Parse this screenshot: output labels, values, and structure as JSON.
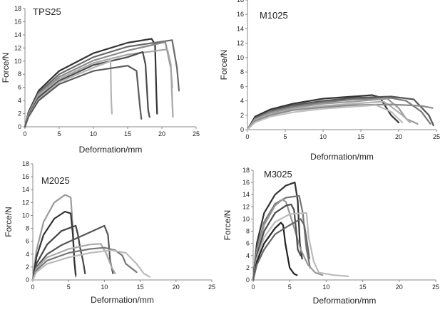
{
  "chart_data": [
    {
      "type": "line",
      "title": "TPS25",
      "xlabel": "Deformation/mm",
      "ylabel": "Force/N",
      "xlim": [
        0,
        25
      ],
      "ylim": [
        0,
        18
      ],
      "xticks": [
        0,
        5,
        10,
        15,
        20,
        25
      ],
      "yticks": [
        0,
        2,
        4,
        6,
        8,
        10,
        12,
        14,
        16,
        18
      ],
      "series": [
        {
          "color": "#333333",
          "x": [
            0,
            0.5,
            2,
            5,
            10,
            15,
            18.5,
            19,
            19.2,
            19.3
          ],
          "y": [
            0,
            2.2,
            5.5,
            8.5,
            11.2,
            12.8,
            13.4,
            12.5,
            5,
            2
          ]
        },
        {
          "color": "#6a6a6a",
          "x": [
            0,
            0.5,
            2,
            5,
            10,
            15,
            21.5,
            22.2,
            22.5
          ],
          "y": [
            0,
            2,
            5.2,
            8,
            10.6,
            12.2,
            13.2,
            9,
            5.5
          ]
        },
        {
          "color": "#8a8a8a",
          "x": [
            0,
            0.5,
            2,
            5,
            10,
            15,
            20.5,
            21.3,
            21.5
          ],
          "y": [
            0,
            1.9,
            5,
            7.6,
            10.1,
            11.6,
            12.9,
            9,
            6
          ]
        },
        {
          "color": "#a8a8a8",
          "x": [
            0,
            0.5,
            2,
            5,
            10,
            15,
            20.8,
            21.3,
            21.6
          ],
          "y": [
            0,
            1.8,
            4.8,
            7.3,
            9.7,
            11,
            11.8,
            9.5,
            1.5
          ]
        },
        {
          "color": "#4a4a4a",
          "x": [
            0,
            0.5,
            2,
            5,
            10,
            15,
            17.2,
            17.6,
            18,
            18.2
          ],
          "y": [
            0,
            1.7,
            4.5,
            7,
            9.4,
            10.6,
            11.4,
            9.5,
            2.5,
            1.5
          ]
        },
        {
          "color": "#b5b5b5",
          "x": [
            0,
            0.5,
            2,
            5,
            10,
            12.5,
            12.6,
            12.7
          ],
          "y": [
            0,
            1.6,
            4.2,
            6.8,
            9,
            10,
            4,
            2
          ]
        },
        {
          "color": "#5a5a5a",
          "x": [
            0,
            0.5,
            2,
            5,
            10,
            15,
            16.3,
            16.8,
            17
          ],
          "y": [
            0,
            1.5,
            4,
            6.5,
            8.5,
            9.3,
            8.5,
            3,
            1.2
          ]
        }
      ]
    },
    {
      "type": "line",
      "title": "M1025",
      "xlabel": "Deformation/mm",
      "ylabel": "Force/N",
      "xlim": [
        0,
        25
      ],
      "ylim": [
        0,
        18
      ],
      "xticks": [
        0,
        5,
        10,
        15,
        20,
        25
      ],
      "yticks": [
        0,
        2,
        4,
        6,
        8,
        10,
        12,
        14,
        16,
        18
      ],
      "series": [
        {
          "color": "#333333",
          "x": [
            0,
            1,
            3,
            6,
            10,
            14,
            16.5,
            17.5,
            19,
            20
          ],
          "y": [
            0,
            1.8,
            2.8,
            3.6,
            4.3,
            4.6,
            4.8,
            4.5,
            2,
            1
          ]
        },
        {
          "color": "#555555",
          "x": [
            0,
            1,
            3,
            6,
            10,
            14,
            19,
            22,
            24,
            24.6
          ],
          "y": [
            0,
            1.6,
            2.6,
            3.4,
            4,
            4.4,
            4.6,
            4.2,
            2,
            0.6
          ]
        },
        {
          "color": "#7a7a7a",
          "x": [
            0,
            1,
            3,
            6,
            10,
            14,
            19,
            21,
            23,
            24.2
          ],
          "y": [
            0,
            1.5,
            2.5,
            3.2,
            3.8,
            4.2,
            4.4,
            4,
            2.5,
            0.8
          ]
        },
        {
          "color": "#9a9a9a",
          "x": [
            0,
            1,
            3,
            6,
            10,
            14,
            18.5,
            20,
            21,
            22.5
          ],
          "y": [
            0,
            1.4,
            2.3,
            3,
            3.6,
            3.9,
            4.3,
            3,
            1.5,
            0.8
          ]
        },
        {
          "color": "#b0b0b0",
          "x": [
            0,
            1,
            3,
            6,
            10,
            14,
            18,
            19,
            20.5,
            21.5
          ],
          "y": [
            0,
            1.3,
            2.1,
            2.8,
            3.3,
            3.6,
            3.9,
            3.2,
            2,
            1
          ]
        },
        {
          "color": "#8c8c8c",
          "x": [
            0,
            1,
            3,
            6,
            10,
            14,
            19,
            23,
            24.5
          ],
          "y": [
            0,
            1.2,
            2,
            2.7,
            3.1,
            3.4,
            3.5,
            3.3,
            3
          ]
        },
        {
          "color": "#c0c0c0",
          "x": [
            0,
            1,
            3,
            6,
            10,
            14,
            17,
            19,
            20.5
          ],
          "y": [
            0,
            1,
            1.8,
            2.4,
            2.9,
            3.2,
            3.4,
            2.5,
            1
          ]
        }
      ]
    },
    {
      "type": "line",
      "title": "M2025",
      "xlabel": "Deformation/mm",
      "ylabel": "Force/N",
      "xlim": [
        0,
        25
      ],
      "ylim": [
        0,
        18
      ],
      "xticks": [
        0,
        5,
        10,
        15,
        20,
        25
      ],
      "yticks": [
        0,
        2,
        4,
        6,
        8,
        10,
        12,
        14,
        16,
        18
      ],
      "series": [
        {
          "color": "#9a9a9a",
          "x": [
            0,
            0.5,
            1.5,
            3,
            4.5,
            5.3,
            5.6,
            5.8,
            6
          ],
          "y": [
            0,
            4.5,
            9,
            12,
            13.2,
            12.8,
            8,
            3,
            0.5
          ]
        },
        {
          "color": "#333333",
          "x": [
            0,
            0.5,
            1.5,
            3,
            4.5,
            5.3,
            5.6,
            5.8,
            6
          ],
          "y": [
            0,
            3.5,
            7,
            9.5,
            10.6,
            10.3,
            7,
            3,
            0.8
          ]
        },
        {
          "color": "#444444",
          "x": [
            0,
            0.5,
            2,
            4,
            6,
            6.3,
            6.6,
            7,
            7.3
          ],
          "y": [
            0,
            2.5,
            5.5,
            7.6,
            8.4,
            7,
            5,
            3,
            1
          ]
        },
        {
          "color": "#555555",
          "x": [
            0,
            0.5,
            2,
            4,
            6,
            8,
            10,
            10.5,
            10.8,
            11.2
          ],
          "y": [
            0,
            2,
            4,
            5.4,
            6.4,
            7.4,
            8.4,
            7,
            3,
            1
          ]
        },
        {
          "color": "#aaaaaa",
          "x": [
            0,
            0.5,
            2,
            5,
            8,
            9.5,
            10.3,
            11,
            11.5
          ],
          "y": [
            0,
            1.8,
            3.5,
            4.8,
            5.5,
            5.6,
            4,
            2,
            1
          ]
        },
        {
          "color": "#777777",
          "x": [
            0,
            0.5,
            2,
            5,
            8,
            10,
            11.5,
            12.5,
            13,
            14.5
          ],
          "y": [
            0,
            1.5,
            3,
            4.2,
            4.8,
            5,
            4.6,
            3.8,
            2.5,
            1.2
          ]
        },
        {
          "color": "#bbbbbb",
          "x": [
            0,
            0.5,
            2,
            5,
            8,
            11,
            13,
            14.5,
            15.5,
            16.3
          ],
          "y": [
            0,
            1.2,
            2.5,
            3.5,
            4.2,
            4.6,
            4.2,
            2.5,
            1,
            0.5
          ]
        }
      ]
    },
    {
      "type": "line",
      "title": "M3025",
      "xlabel": "Deformation/mm",
      "ylabel": "Force/N",
      "xlim": [
        0,
        25
      ],
      "ylim": [
        0,
        18
      ],
      "xticks": [
        0,
        5,
        10,
        15,
        20,
        25
      ],
      "yticks": [
        0,
        2,
        4,
        6,
        8,
        10,
        12,
        14,
        16,
        18
      ],
      "series": [
        {
          "color": "#333333",
          "x": [
            0,
            0.5,
            1.5,
            3,
            4.5,
            5.7,
            6.1,
            6.4,
            6.7
          ],
          "y": [
            0,
            6,
            11,
            14,
            15.5,
            16,
            13,
            6,
            3.5
          ]
        },
        {
          "color": "#777777",
          "x": [
            0,
            0.5,
            1.5,
            3,
            4.5,
            6.3,
            6.8,
            7.3,
            7.8
          ],
          "y": [
            0,
            5,
            9.5,
            12.5,
            13.5,
            13.8,
            11,
            5,
            2
          ]
        },
        {
          "color": "#999999",
          "x": [
            0,
            0.5,
            1.5,
            3,
            4,
            4.5,
            5.5,
            6.5,
            7.5,
            8.5,
            9.5
          ],
          "y": [
            0,
            4.5,
            9,
            12.2,
            13.2,
            12.8,
            9,
            5,
            2.5,
            1.2,
            0.8
          ]
        },
        {
          "color": "#4d4d4d",
          "x": [
            0,
            0.5,
            1.5,
            3,
            4.5,
            5.2,
            5.6,
            5.9,
            6.1,
            6.5
          ],
          "y": [
            0,
            4,
            8,
            11,
            12.2,
            12.4,
            11.5,
            8,
            5,
            4
          ]
        },
        {
          "color": "#bbbbbb",
          "x": [
            0,
            0.5,
            1.5,
            3,
            5,
            7.3,
            7.6,
            8.3,
            9,
            11,
            13
          ],
          "y": [
            0,
            3.5,
            7,
            9.5,
            10.8,
            11,
            7,
            3,
            1.2,
            0.8,
            0.6
          ]
        },
        {
          "color": "#222222",
          "x": [
            0,
            0.5,
            1.5,
            3,
            3.8,
            4.1,
            4.4,
            5,
            5.6,
            6
          ],
          "y": [
            0,
            3,
            6,
            8.5,
            9.4,
            9,
            6,
            2,
            1,
            0.8
          ]
        },
        {
          "color": "#666666",
          "x": [
            0,
            0.5,
            1.5,
            3,
            5,
            6.5,
            7,
            7.4,
            7.7
          ],
          "y": [
            0,
            2.5,
            5,
            7.5,
            9,
            10,
            9,
            6,
            3.5
          ]
        }
      ]
    }
  ]
}
